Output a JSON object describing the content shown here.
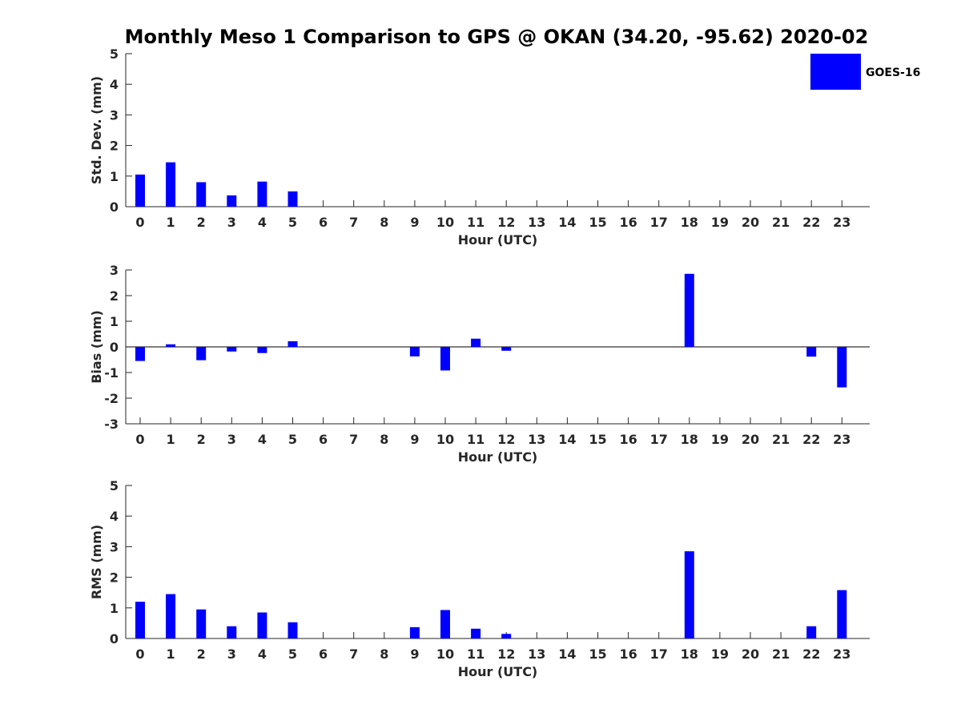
{
  "chart_data": {
    "title": "Monthly Meso 1 Comparison to GPS @ OKAN (34.20, -95.62) 2020-02",
    "legend": {
      "entries": [
        "GOES-16"
      ],
      "placement": "top-right",
      "color": "#0000ff"
    },
    "bar_color": "#0000ff",
    "panels": [
      {
        "type": "bar",
        "ylabel": "Std. Dev. (mm)",
        "xlabel": "Hour (UTC)",
        "ylim": [
          0,
          5
        ],
        "yticks": [
          0,
          1,
          2,
          3,
          4,
          5
        ],
        "grid": false,
        "categories": [
          "0",
          "1",
          "2",
          "3",
          "4",
          "5",
          "6",
          "7",
          "8",
          "9",
          "10",
          "11",
          "12",
          "13",
          "14",
          "15",
          "16",
          "17",
          "18",
          "19",
          "20",
          "21",
          "22",
          "23"
        ],
        "series": [
          {
            "name": "GOES-16",
            "values": [
              1.05,
              1.45,
              0.8,
              0.37,
              0.82,
              0.5,
              0,
              0,
              0,
              0,
              0,
              0,
              0,
              0,
              0,
              0,
              0,
              0,
              0,
              0,
              0,
              0,
              0,
              0
            ]
          }
        ]
      },
      {
        "type": "bar",
        "ylabel": "Bias (mm)",
        "xlabel": "Hour (UTC)",
        "ylim": [
          -3,
          3
        ],
        "yticks": [
          -3,
          -2,
          -1,
          0,
          1,
          2,
          3
        ],
        "grid": false,
        "zero_line": true,
        "categories": [
          "0",
          "1",
          "2",
          "3",
          "4",
          "5",
          "6",
          "7",
          "8",
          "9",
          "10",
          "11",
          "12",
          "13",
          "14",
          "15",
          "16",
          "17",
          "18",
          "19",
          "20",
          "21",
          "22",
          "23"
        ],
        "series": [
          {
            "name": "GOES-16",
            "values": [
              -0.55,
              0.1,
              -0.52,
              -0.18,
              -0.24,
              0.22,
              0,
              0,
              0,
              -0.37,
              -0.92,
              0.32,
              -0.15,
              0,
              0,
              0,
              0,
              0,
              2.85,
              0,
              0,
              0,
              -0.38,
              -1.58
            ]
          }
        ]
      },
      {
        "type": "bar",
        "ylabel": "RMS (mm)",
        "xlabel": "Hour (UTC)",
        "ylim": [
          0,
          5
        ],
        "yticks": [
          0,
          1,
          2,
          3,
          4,
          5
        ],
        "grid": false,
        "categories": [
          "0",
          "1",
          "2",
          "3",
          "4",
          "5",
          "6",
          "7",
          "8",
          "9",
          "10",
          "11",
          "12",
          "13",
          "14",
          "15",
          "16",
          "17",
          "18",
          "19",
          "20",
          "21",
          "22",
          "23"
        ],
        "series": [
          {
            "name": "GOES-16",
            "values": [
              1.2,
              1.45,
              0.95,
              0.4,
              0.85,
              0.53,
              0,
              0,
              0,
              0.37,
              0.93,
              0.32,
              0.15,
              0,
              0,
              0,
              0,
              0,
              2.85,
              0,
              0,
              0,
              0.4,
              1.58
            ]
          }
        ]
      }
    ]
  }
}
